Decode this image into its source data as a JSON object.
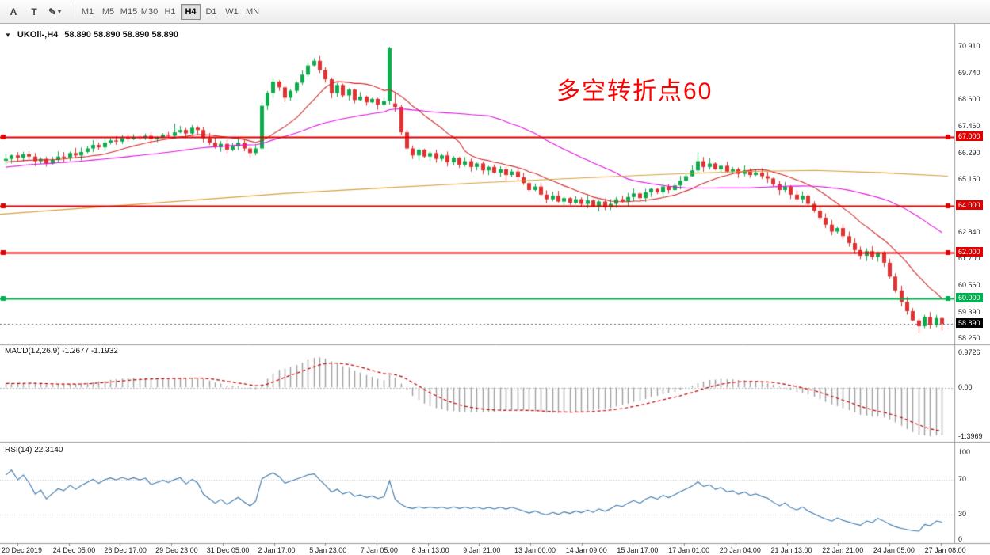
{
  "toolbar": {
    "tool_buttons": [
      {
        "label": "A"
      },
      {
        "label": "T"
      },
      {
        "label": "✎",
        "chevron": "▾"
      }
    ],
    "timeframes": [
      "M1",
      "M5",
      "M15",
      "M30",
      "H1",
      "H4",
      "D1",
      "W1",
      "MN"
    ],
    "active_timeframe": "H4"
  },
  "chart": {
    "title": {
      "icon": "▼",
      "symbol": "UKOil-,H4",
      "ohlc": "58.890 58.890 58.890 58.890"
    },
    "annotation": {
      "text": "多空转折点60",
      "color": "#ff0000"
    },
    "price_axis_labels": [
      "70.910",
      "69.740",
      "68.600",
      "67.460",
      "66.290",
      "65.150",
      "62.840",
      "61.700",
      "60.560",
      "59.390",
      "58.250"
    ],
    "hlines": [
      {
        "price": 67.0,
        "label": "67.000",
        "color": "#e00000"
      },
      {
        "price": 64.0,
        "label": "64.000",
        "color": "#e00000"
      },
      {
        "price": 62.0,
        "label": "62.000",
        "color": "#e00000"
      },
      {
        "price": 60.0,
        "label": "60.000",
        "color": "#00b14f"
      }
    ],
    "current_price": {
      "value": 58.89,
      "label": "58.890",
      "color": "#000000"
    }
  },
  "indicators": {
    "macd": {
      "label": "MACD(12,26,9) -1.2677 -1.1932",
      "axis": [
        "0.9726",
        "0.00",
        "-1.3969"
      ]
    },
    "rsi": {
      "label": "RSI(14) 22.3140",
      "axis": [
        "100",
        "70",
        "30",
        "0"
      ]
    }
  },
  "time_axis": [
    "20 Dec 2019",
    "24 Dec 05:00",
    "26 Dec 17:00",
    "29 Dec 23:00",
    "31 Dec 05:00",
    "2 Jan 17:00",
    "5 Jan 23:00",
    "7 Jan 05:00",
    "8 Jan 13:00",
    "9 Jan 21:00",
    "13 Jan 00:00",
    "14 Jan 09:00",
    "15 Jan 17:00",
    "17 Jan 01:00",
    "20 Jan 04:00",
    "21 Jan 13:00",
    "22 Jan 21:00",
    "24 Jan 05:00",
    "27 Jan 08:00"
  ],
  "chart_data": {
    "type": "candlestick",
    "symbol": "UKOil-",
    "timeframe": "H4",
    "price_range": [
      58.25,
      70.91
    ],
    "up_color": "#0fab4e",
    "down_color": "#e03232",
    "closes": [
      66.05,
      66.2,
      66.1,
      66.25,
      66.15,
      65.95,
      66.05,
      65.85,
      66.0,
      66.15,
      66.1,
      66.3,
      66.2,
      66.35,
      66.5,
      66.65,
      66.55,
      66.75,
      66.85,
      66.8,
      66.95,
      66.9,
      67.0,
      66.95,
      67.05,
      66.9,
      67.0,
      67.1,
      67.05,
      67.2,
      67.3,
      67.15,
      67.4,
      67.3,
      66.95,
      66.75,
      66.55,
      66.7,
      66.45,
      66.6,
      66.75,
      66.5,
      66.3,
      66.5,
      68.35,
      68.9,
      69.4,
      69.15,
      68.7,
      69.0,
      69.35,
      69.7,
      70.1,
      70.3,
      69.9,
      69.5,
      68.9,
      69.25,
      68.8,
      69.05,
      68.6,
      68.75,
      68.5,
      68.65,
      68.4,
      68.55,
      70.85,
      68.3,
      67.2,
      66.5,
      66.2,
      66.45,
      66.15,
      66.3,
      66.05,
      66.2,
      65.9,
      66.1,
      65.8,
      65.95,
      65.7,
      65.85,
      65.55,
      65.7,
      65.45,
      65.6,
      65.35,
      65.5,
      65.25,
      65.0,
      64.7,
      64.85,
      64.5,
      64.3,
      64.45,
      64.2,
      64.35,
      64.15,
      64.3,
      64.1,
      64.25,
      64.0,
      64.2,
      63.95,
      64.1,
      64.3,
      64.2,
      64.4,
      64.55,
      64.35,
      64.6,
      64.75,
      64.6,
      64.85,
      64.7,
      64.9,
      65.1,
      65.3,
      65.55,
      65.95,
      65.7,
      65.85,
      65.6,
      65.75,
      65.5,
      65.6,
      65.4,
      65.55,
      65.35,
      65.45,
      65.3,
      65.2,
      64.95,
      64.7,
      64.85,
      64.5,
      64.3,
      64.45,
      64.1,
      63.8,
      63.5,
      63.2,
      62.9,
      63.05,
      62.7,
      62.4,
      62.1,
      61.85,
      62.05,
      61.8,
      62.0,
      61.55,
      60.95,
      60.35,
      59.85,
      59.45,
      59.05,
      58.8,
      59.2,
      58.85,
      59.15,
      58.89
    ],
    "overrides": {
      "29": {
        "h": 67.58
      },
      "44": {
        "h": 68.5,
        "l": 66.42
      },
      "66": {
        "h": 70.91,
        "l": 68.4
      },
      "67": {
        "o": 68.45,
        "h": 68.95
      },
      "119": {
        "h": 66.32
      },
      "157": {
        "l": 58.5
      },
      "161": {
        "l": 58.6
      }
    },
    "ma_lines": [
      {
        "name": "ma-fast",
        "type": "sma",
        "period": 13,
        "color": "#d22a2a"
      },
      {
        "name": "ma-mid",
        "type": "sma",
        "period": 40,
        "color": "#e013e0"
      },
      {
        "name": "ma-slow",
        "type": "points",
        "color": "#d9a13c",
        "points": [
          [
            0,
            63.65
          ],
          [
            0.1,
            63.95
          ],
          [
            0.2,
            64.25
          ],
          [
            0.3,
            64.55
          ],
          [
            0.4,
            64.78
          ],
          [
            0.5,
            65.0
          ],
          [
            0.6,
            65.2
          ],
          [
            0.7,
            65.38
          ],
          [
            0.78,
            65.5
          ],
          [
            0.86,
            65.55
          ],
          [
            0.93,
            65.45
          ],
          [
            1,
            65.3
          ]
        ]
      }
    ],
    "macd": {
      "fast": 12,
      "slow": 26,
      "signal_period": 9,
      "scale_max": 0.9726,
      "scale_min": -1.3969,
      "histogram_color": "#9e9e9e",
      "signal_color": "#c40000"
    },
    "rsi": {
      "period": 14,
      "levels": [
        70,
        30
      ],
      "color": "#3a76ad"
    }
  }
}
